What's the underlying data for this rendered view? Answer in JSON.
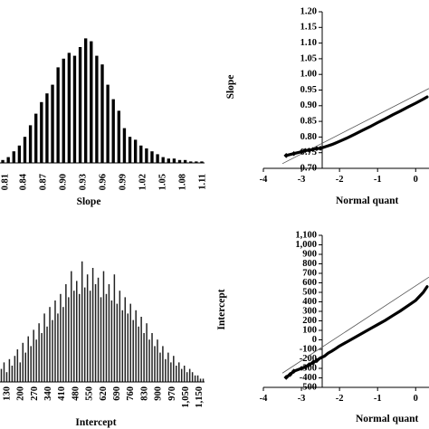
{
  "chart_data": [
    {
      "type": "bar",
      "xlabel": "Slope",
      "x_tick_labels": [
        "0.84",
        "0.87",
        "0.90",
        "0.93",
        "0.96",
        "0.99",
        "1.02",
        "1.05",
        "1.08",
        "1.11"
      ],
      "partial_first_tick_label": "0.81",
      "bin_width": 0.006,
      "bin_start": 0.816,
      "values": [
        1,
        2,
        4,
        6,
        9,
        13,
        17,
        21,
        24,
        27,
        33,
        36,
        38,
        37,
        40,
        43,
        42,
        37,
        34,
        27,
        22,
        18,
        12,
        9,
        8,
        6,
        5,
        4,
        3,
        2,
        1.5,
        1.5,
        1,
        1,
        0.5,
        0.5,
        0.5
      ]
    },
    {
      "type": "scatter",
      "xlabel": "Normal quant",
      "ylabel": "Slope",
      "xlim": [
        -4,
        0.35
      ],
      "ylim": [
        0.7,
        1.2
      ],
      "x_ticks": [
        "-4",
        "-3",
        "-2",
        "-1",
        "0"
      ],
      "y_ticks": [
        "0.70",
        "0.75",
        "0.80",
        "0.85",
        "0.90",
        "0.95",
        "1.00",
        "1.05",
        "1.10",
        "1.15",
        "1.20"
      ],
      "reference_line": [
        [
          -3.5,
          0.715
        ],
        [
          0.35,
          0.955
        ]
      ],
      "points": [
        [
          -3.4,
          0.741
        ],
        [
          -3.2,
          0.747
        ],
        [
          -3.0,
          0.753
        ],
        [
          -2.9,
          0.757
        ],
        [
          -2.8,
          0.758
        ],
        [
          -2.7,
          0.76
        ],
        [
          -2.6,
          0.763
        ],
        [
          -2.5,
          0.764
        ],
        [
          -2.4,
          0.768
        ],
        [
          -2.3,
          0.772
        ],
        [
          -2.2,
          0.776
        ],
        [
          -2.1,
          0.781
        ],
        [
          -2.0,
          0.786
        ],
        [
          -1.8,
          0.797
        ],
        [
          -1.6,
          0.809
        ],
        [
          -1.4,
          0.821
        ],
        [
          -1.2,
          0.833
        ],
        [
          -1.0,
          0.846
        ],
        [
          -0.8,
          0.858
        ],
        [
          -0.6,
          0.871
        ],
        [
          -0.4,
          0.883
        ],
        [
          -0.2,
          0.896
        ],
        [
          0.0,
          0.908
        ],
        [
          0.2,
          0.921
        ],
        [
          0.3,
          0.928
        ]
      ]
    },
    {
      "type": "bar",
      "xlabel": "Intercept",
      "x_tick_labels": [
        "130",
        "200",
        "270",
        "340",
        "410",
        "480",
        "550",
        "620",
        "690",
        "760",
        "830",
        "900",
        "970",
        "1,050",
        "1,150"
      ],
      "values": [
        4,
        6,
        3,
        7,
        5,
        8,
        10,
        6,
        12,
        9,
        14,
        11,
        16,
        13,
        18,
        15,
        21,
        17,
        23,
        19,
        25,
        21,
        27,
        23,
        30,
        26,
        34,
        28,
        31,
        27,
        37,
        29,
        33,
        28,
        35,
        30,
        32,
        26,
        34,
        27,
        30,
        25,
        33,
        24,
        28,
        22,
        26,
        21,
        24,
        19,
        22,
        17,
        20,
        15,
        18,
        13,
        15,
        11,
        13,
        9,
        11,
        7,
        9,
        6,
        8,
        5,
        6,
        4,
        5,
        3,
        4,
        3,
        2,
        2,
        1,
        1
      ]
    },
    {
      "type": "scatter",
      "xlabel": "Normal quant",
      "ylabel": "Intercept",
      "xlim": [
        -4,
        0.35
      ],
      "ylim": [
        -500,
        1100
      ],
      "x_ticks": [
        "-4",
        "-3",
        "-2",
        "-1",
        "0"
      ],
      "y_ticks": [
        "-500",
        "-400",
        "-300",
        "-200",
        "-100",
        "0",
        "100",
        "200",
        "300",
        "400",
        "500",
        "600",
        "700",
        "800",
        "900",
        "1,000",
        "1,100"
      ],
      "reference_line": [
        [
          -3.5,
          -350
        ],
        [
          0.35,
          660
        ]
      ],
      "points": [
        [
          -3.4,
          -395
        ],
        [
          -3.3,
          -365
        ],
        [
          -3.2,
          -330
        ],
        [
          -3.0,
          -300
        ],
        [
          -2.9,
          -285
        ],
        [
          -2.8,
          -262
        ],
        [
          -2.7,
          -240
        ],
        [
          -2.6,
          -218
        ],
        [
          -2.5,
          -190
        ],
        [
          -2.4,
          -172
        ],
        [
          -2.3,
          -140
        ],
        [
          -2.2,
          -118
        ],
        [
          -2.1,
          -92
        ],
        [
          -2.0,
          -65
        ],
        [
          -1.8,
          -20
        ],
        [
          -1.6,
          25
        ],
        [
          -1.4,
          70
        ],
        [
          -1.2,
          115
        ],
        [
          -1.0,
          160
        ],
        [
          -0.8,
          205
        ],
        [
          -0.6,
          255
        ],
        [
          -0.4,
          305
        ],
        [
          -0.2,
          360
        ],
        [
          0.0,
          415
        ],
        [
          0.2,
          500
        ],
        [
          0.3,
          560
        ]
      ]
    }
  ]
}
